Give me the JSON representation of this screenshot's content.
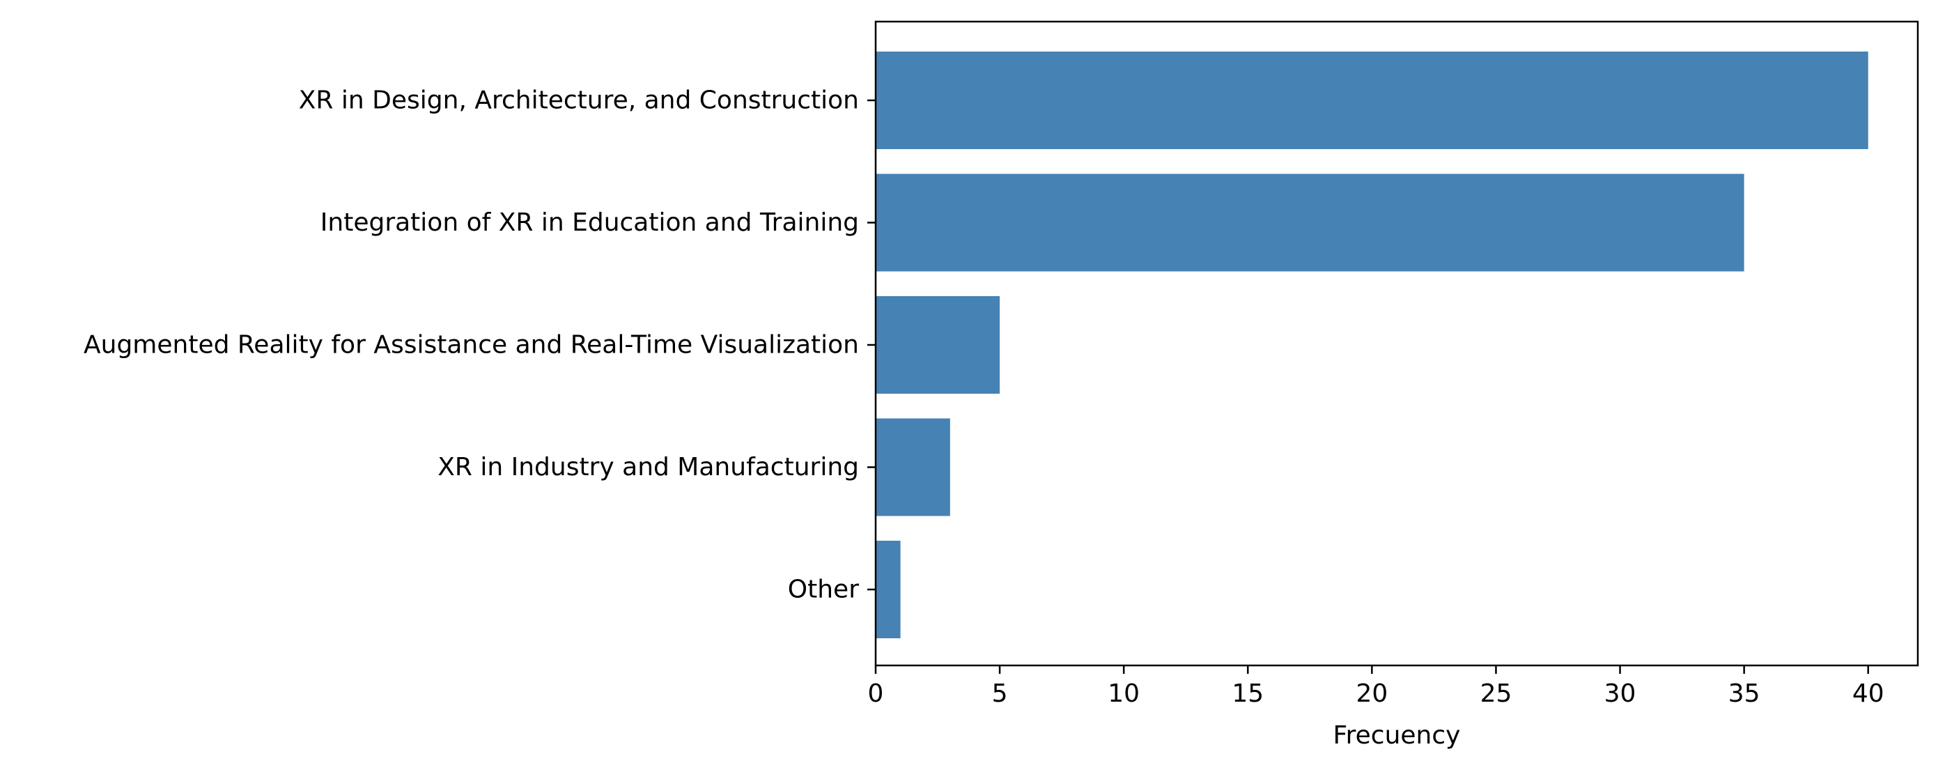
{
  "chart_data": {
    "type": "bar",
    "orientation": "horizontal",
    "categories": [
      "XR in Design, Architecture, and Construction",
      "Integration of XR in Education and Training",
      "Augmented Reality for Assistance and Real-Time Visualization",
      "XR in Industry and Manufacturing",
      "Other"
    ],
    "values": [
      40,
      35,
      5,
      3,
      1
    ],
    "xlabel": "Frecuency",
    "ylabel": "",
    "title": "",
    "xlim": [
      0,
      42
    ],
    "xticks": [
      0,
      5,
      10,
      15,
      20,
      25,
      30,
      35,
      40
    ],
    "bar_color": "#4682b4",
    "grid": false,
    "legend": "none"
  }
}
